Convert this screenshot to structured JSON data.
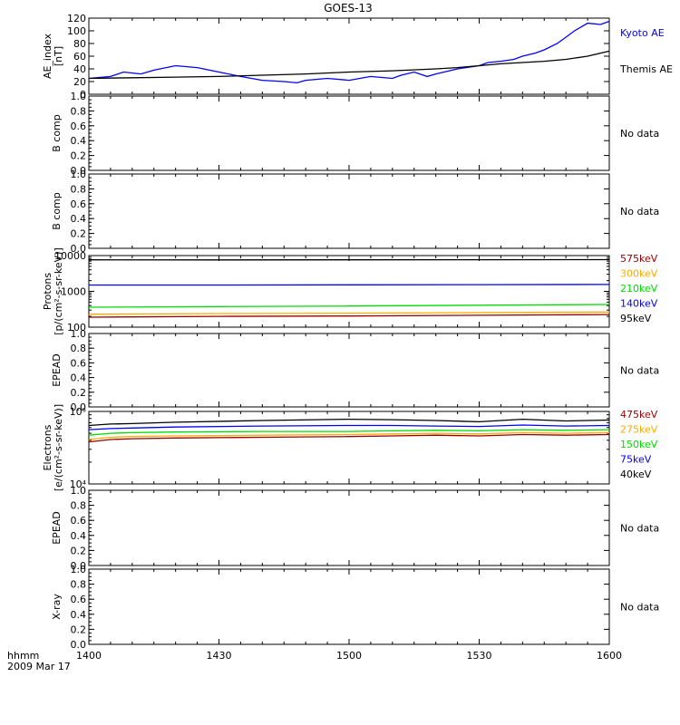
{
  "title": "GOES-13",
  "time_axis": {
    "ticks": [
      "1400",
      "1430",
      "1500",
      "1530",
      "1600"
    ],
    "corner_label_1": "hhmm",
    "corner_label_2": "2009 Mar 17"
  },
  "colors": {
    "black": "#000000",
    "blue": "#0000ff",
    "green": "#00dd00",
    "orange": "#ffaa00",
    "darkred": "#990000"
  },
  "chart_data": [
    {
      "type": "line",
      "id": "ae",
      "ylabel_lines": [
        "AE_index",
        "[nT]"
      ],
      "yscale": "linear",
      "ylim": [
        0,
        120
      ],
      "yticks": [
        "0",
        "20",
        "40",
        "60",
        "80",
        "100",
        "120"
      ],
      "xlim_minutes": [
        0,
        120
      ],
      "series": [
        {
          "name": "Kyoto AE",
          "color": "#0000ff",
          "x": [
            0,
            5,
            8,
            12,
            15,
            20,
            25,
            30,
            35,
            40,
            45,
            48,
            50,
            55,
            60,
            65,
            70,
            72,
            75,
            78,
            80,
            85,
            90,
            92,
            95,
            98,
            100,
            103,
            105,
            108,
            110,
            112,
            115,
            118,
            120
          ],
          "y": [
            25,
            28,
            35,
            32,
            38,
            45,
            42,
            35,
            28,
            22,
            20,
            18,
            22,
            25,
            22,
            28,
            25,
            30,
            35,
            28,
            32,
            40,
            45,
            50,
            52,
            55,
            60,
            65,
            70,
            80,
            90,
            100,
            112,
            110,
            115
          ]
        },
        {
          "name": "Themis AE",
          "color": "#000000",
          "x": [
            0,
            10,
            20,
            30,
            40,
            50,
            60,
            70,
            80,
            85,
            90,
            95,
            100,
            105,
            110,
            115,
            120
          ],
          "y": [
            25,
            26,
            27,
            28,
            30,
            32,
            35,
            37,
            40,
            42,
            45,
            48,
            50,
            52,
            55,
            60,
            68
          ]
        }
      ]
    },
    {
      "type": "line",
      "id": "b1",
      "ylabel_lines": [
        "B comp"
      ],
      "yscale": "linear",
      "ylim": [
        0,
        1
      ],
      "yticks": [
        "0.0",
        "0.2",
        "0.4",
        "0.6",
        "0.8",
        "1.0"
      ],
      "note": "No data",
      "series": []
    },
    {
      "type": "line",
      "id": "b2",
      "ylabel_lines": [
        "B comp"
      ],
      "yscale": "linear",
      "ylim": [
        0,
        1
      ],
      "yticks": [
        "0.0",
        "0.2",
        "0.4",
        "0.6",
        "0.8",
        "1.0"
      ],
      "note": "No data",
      "series": []
    },
    {
      "type": "line",
      "id": "protons",
      "ylabel_lines": [
        "Protons",
        "[p/(cm²-s-sr-keV)]"
      ],
      "yscale": "log",
      "ylim": [
        100,
        10000
      ],
      "yticks": [
        "100",
        "1000",
        "10000"
      ],
      "series": [
        {
          "name": "575keV",
          "color": "#990000",
          "x": [
            0,
            30,
            60,
            90,
            120
          ],
          "y": [
            190,
            200,
            205,
            215,
            225
          ]
        },
        {
          "name": "300keV",
          "color": "#ffaa00",
          "x": [
            0,
            30,
            60,
            90,
            120
          ],
          "y": [
            230,
            240,
            245,
            255,
            265
          ]
        },
        {
          "name": "210keV",
          "color": "#00dd00",
          "x": [
            0,
            30,
            60,
            90,
            120
          ],
          "y": [
            360,
            375,
            390,
            410,
            430
          ]
        },
        {
          "name": "140keV",
          "color": "#0000ff",
          "x": [
            0,
            30,
            60,
            90,
            120
          ],
          "y": [
            1500,
            1500,
            1520,
            1540,
            1560
          ]
        },
        {
          "name": "95keV",
          "color": "#000000",
          "x": [
            0,
            30,
            60,
            90,
            120
          ],
          "y": [
            7600,
            7550,
            7600,
            7650,
            7700
          ]
        }
      ]
    },
    {
      "type": "line",
      "id": "epead1",
      "ylabel_lines": [
        "EPEAD"
      ],
      "yscale": "linear",
      "ylim": [
        0,
        1
      ],
      "yticks": [
        "0.0",
        "0.2",
        "0.4",
        "0.6",
        "0.8",
        "1.0"
      ],
      "note": "No data",
      "series": []
    },
    {
      "type": "line",
      "id": "electrons",
      "ylabel_lines": [
        "Electrons",
        "[e/(cm²-s-sr-keV)]"
      ],
      "yscale": "log",
      "ylim": [
        10000,
        100000
      ],
      "yticks": [
        "10⁴",
        "10⁵"
      ],
      "series": [
        {
          "name": "475keV",
          "color": "#990000",
          "x": [
            0,
            5,
            10,
            20,
            40,
            60,
            70,
            80,
            90,
            100,
            110,
            120
          ],
          "y": [
            38000,
            41000,
            42000,
            43000,
            44000,
            45000,
            46000,
            47000,
            46000,
            48000,
            47000,
            48000
          ]
        },
        {
          "name": "275keV",
          "color": "#ffaa00",
          "x": [
            0,
            5,
            10,
            20,
            40,
            60,
            70,
            80,
            90,
            100,
            110,
            120
          ],
          "y": [
            41000,
            44000,
            45000,
            46000,
            47000,
            48000,
            49000,
            50000,
            49000,
            51000,
            50000,
            51000
          ]
        },
        {
          "name": "150keV",
          "color": "#00dd00",
          "x": [
            0,
            5,
            10,
            20,
            40,
            60,
            70,
            80,
            90,
            100,
            110,
            120
          ],
          "y": [
            47000,
            50000,
            51000,
            52000,
            53000,
            53000,
            54000,
            55000,
            54000,
            56000,
            55000,
            56000
          ]
        },
        {
          "name": "75keV",
          "color": "#0000ff",
          "x": [
            0,
            5,
            10,
            20,
            40,
            60,
            70,
            80,
            90,
            100,
            110,
            120
          ],
          "y": [
            56000,
            58000,
            59000,
            61000,
            63000,
            64000,
            64000,
            63000,
            62000,
            65000,
            63000,
            64000
          ]
        },
        {
          "name": "40keV",
          "color": "#000000",
          "x": [
            0,
            5,
            10,
            20,
            40,
            60,
            70,
            80,
            90,
            100,
            110,
            120
          ],
          "y": [
            64000,
            67000,
            68000,
            71000,
            75000,
            78000,
            77000,
            75000,
            72000,
            78000,
            74000,
            76000
          ]
        }
      ]
    },
    {
      "type": "line",
      "id": "epead2",
      "ylabel_lines": [
        "EPEAD"
      ],
      "yscale": "linear",
      "ylim": [
        0,
        1
      ],
      "yticks": [
        "0.0",
        "0.2",
        "0.4",
        "0.6",
        "0.8",
        "1.0"
      ],
      "note": "No data",
      "series": []
    },
    {
      "type": "line",
      "id": "xray",
      "ylabel_lines": [
        "X-ray"
      ],
      "yscale": "linear",
      "ylim": [
        0,
        1
      ],
      "yticks": [
        "0.0",
        "0.2",
        "0.4",
        "0.6",
        "0.8",
        "1.0"
      ],
      "note": "No data",
      "series": []
    }
  ]
}
